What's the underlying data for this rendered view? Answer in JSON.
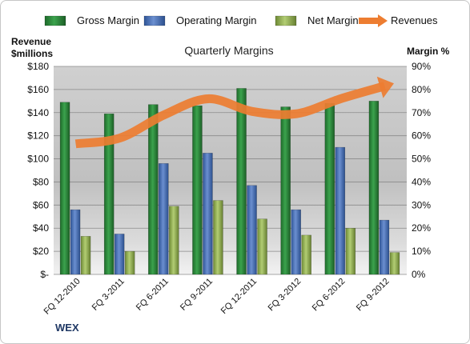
{
  "chart_data": {
    "type": "bar",
    "title": "Quarterly Margins",
    "categories": [
      "FQ 12-2010",
      "FQ 3-2011",
      "FQ 6-2011",
      "FQ 9-2011",
      "FQ 12-2011",
      "FQ 3-2012",
      "FQ 6-2012",
      "FQ 9-2012"
    ],
    "series": [
      {
        "name": "Gross Margin",
        "axis": "right",
        "unit": "%",
        "color": "#2e8b3e",
        "values": [
          74.5,
          69.5,
          73.5,
          73.0,
          80.5,
          72.5,
          74.0,
          75.0
        ]
      },
      {
        "name": "Operating Margin",
        "axis": "right",
        "unit": "%",
        "color": "#4f78bd",
        "values": [
          28.0,
          17.5,
          48.0,
          52.5,
          38.5,
          28.0,
          55.0,
          23.5
        ]
      },
      {
        "name": "Net Margin",
        "axis": "right",
        "unit": "%",
        "color": "#9bbb59",
        "values": [
          16.5,
          10.0,
          29.5,
          32.0,
          24.0,
          17.0,
          20.0,
          9.5
        ]
      },
      {
        "name": "Revenues",
        "axis": "left",
        "unit": "$millions",
        "type": "line",
        "color": "#ed7d31",
        "values": [
          113,
          118,
          138,
          152,
          141,
          139,
          152,
          163
        ]
      }
    ],
    "y_left": {
      "label_line1": "Revenue",
      "label_line2": "$millions",
      "min": 0,
      "max": 180,
      "step": 20,
      "tick_labels": [
        "$-",
        "$20",
        "$40",
        "$60",
        "$80",
        "$100",
        "$120",
        "$140",
        "$160",
        "$180"
      ]
    },
    "y_right": {
      "label": "Margin %",
      "min": 0,
      "max": 90,
      "step": 10,
      "tick_labels": [
        "0%",
        "10%",
        "20%",
        "30%",
        "40%",
        "50%",
        "60%",
        "70%",
        "80%",
        "90%"
      ]
    },
    "legend": {
      "position": "top"
    },
    "grid": true,
    "watermark": "WEX"
  }
}
